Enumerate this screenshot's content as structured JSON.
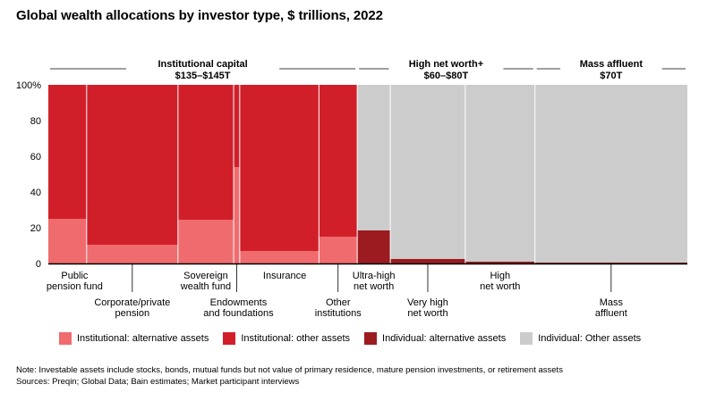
{
  "title": "Global wealth allocations by investor type, $ trillions, 2022",
  "groups": [
    {
      "name": "Institutional capital",
      "value": "$135–$145T"
    },
    {
      "name": "High net worth+",
      "value": "$60–$80T"
    },
    {
      "name": "Mass affluent",
      "value": "$70T"
    }
  ],
  "colors": {
    "inst_alt": "#f06b6e",
    "inst_other": "#d11f2a",
    "ind_alt": "#9b1b20",
    "ind_other": "#cccccc"
  },
  "legend": [
    {
      "label": "Institutional: alternative assets",
      "color": "#f06b6e"
    },
    {
      "label": "Institutional: other assets",
      "color": "#d11f2a"
    },
    {
      "label": "Individual: alternative assets",
      "color": "#9b1b20"
    },
    {
      "label": "Individual: Other assets",
      "color": "#cccccc"
    }
  ],
  "notes": {
    "note": "Note: Investable assets include stocks, bonds, mutual funds but not value of primary residence, mature pension investments, or retirement assets",
    "sources": "Sources: Preqin; Global Data; Bain estimates; Market participant interviews"
  },
  "chart_data": {
    "type": "bar",
    "subtype": "marimekko (100% stacked, variable width)",
    "ylim": [
      0,
      100
    ],
    "yticks": [
      "0",
      "20",
      "40",
      "60",
      "80",
      "100%"
    ],
    "categories": [
      {
        "label": "Public\npension fund",
        "alt": 25,
        "kind": "institutional",
        "width_share": 0.0585
      },
      {
        "label": "Corporate/private\npension",
        "alt": 10.5,
        "kind": "institutional",
        "width_share": 0.1394
      },
      {
        "label": "Sovereign\nwealth fund",
        "alt": 24.5,
        "kind": "institutional",
        "width_share": 0.085
      },
      {
        "label": "Endowments\nand foundations",
        "alt": 54,
        "kind": "institutional",
        "width_share": 0.0093
      },
      {
        "label": "Insurance",
        "alt": 7,
        "kind": "institutional",
        "width_share": 0.1209
      },
      {
        "label": "Other\ninstitutions",
        "alt": 15,
        "kind": "institutional",
        "width_share": 0.0585
      },
      {
        "label": "Ultra-high\nnet worth",
        "alt": 18.5,
        "kind": "individual",
        "width_share": 0.0505
      },
      {
        "label": "Very high\nnet worth",
        "alt": 2.5,
        "kind": "individual",
        "width_share": 0.1144
      },
      {
        "label": "High\nnet worth",
        "alt": 1,
        "kind": "individual",
        "width_share": 0.1064
      },
      {
        "label": "Mass\naffluent",
        "alt": 0.5,
        "kind": "individual",
        "width_share": 0.2327
      }
    ]
  }
}
